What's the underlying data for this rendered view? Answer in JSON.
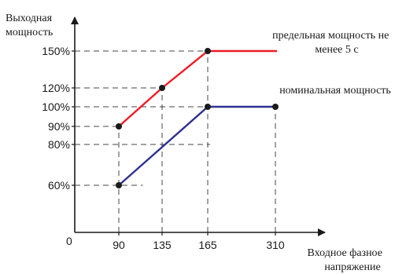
{
  "chart_data": {
    "type": "line",
    "ylabel": [
      "Выходная",
      "мощность"
    ],
    "xlabel": [
      "Входное фазное",
      "напряжение"
    ],
    "origin_label": "0",
    "x_ticks": [
      90,
      135,
      165,
      310
    ],
    "y_ticks": [
      {
        "value": 60,
        "label": "60%"
      },
      {
        "value": 80,
        "label": "80%"
      },
      {
        "value": 90,
        "label": "90%"
      },
      {
        "value": 100,
        "label": "100%"
      },
      {
        "value": 120,
        "label": "120%"
      },
      {
        "value": 150,
        "label": "150%"
      }
    ],
    "guides": [
      {
        "x1": 0,
        "y1": 150,
        "x2": 165,
        "y2": 150
      },
      {
        "x1": 0,
        "y1": 120,
        "x2": 135,
        "y2": 120
      },
      {
        "x1": 0,
        "y1": 100,
        "x2": 165,
        "y2": 100
      },
      {
        "x1": 0,
        "y1": 90,
        "x2": 90,
        "y2": 90
      },
      {
        "x1": 0,
        "y1": 80,
        "x2": 170,
        "y2": 80
      },
      {
        "x1": 0,
        "y1": 60,
        "x2": 115,
        "y2": 60
      },
      {
        "x1": 90,
        "y1": 0,
        "x2": 90,
        "y2": 90
      },
      {
        "x1": 135,
        "y1": 0,
        "x2": 135,
        "y2": 120
      },
      {
        "x1": 165,
        "y1": 0,
        "x2": 165,
        "y2": 150
      },
      {
        "x1": 310,
        "y1": 0,
        "x2": 310,
        "y2": 100
      }
    ],
    "series": [
      {
        "name": "предельная мощность не менее 5 с",
        "label_lines": [
          "предельная мощность не",
          "менее 5 с"
        ],
        "color": "#ee1c25",
        "points": [
          [
            90,
            90
          ],
          [
            135,
            120
          ],
          [
            165,
            150
          ],
          [
            330,
            150
          ]
        ],
        "markers": [
          [
            90,
            90
          ],
          [
            135,
            120
          ],
          [
            165,
            150
          ]
        ]
      },
      {
        "name": "номинальная мощность",
        "label_lines": [
          "номинальная мощность"
        ],
        "color": "#2e3192",
        "points": [
          [
            90,
            60
          ],
          [
            165,
            100
          ],
          [
            310,
            100
          ]
        ],
        "markers": [
          [
            90,
            60
          ],
          [
            165,
            100
          ],
          [
            310,
            100
          ]
        ]
      }
    ]
  }
}
